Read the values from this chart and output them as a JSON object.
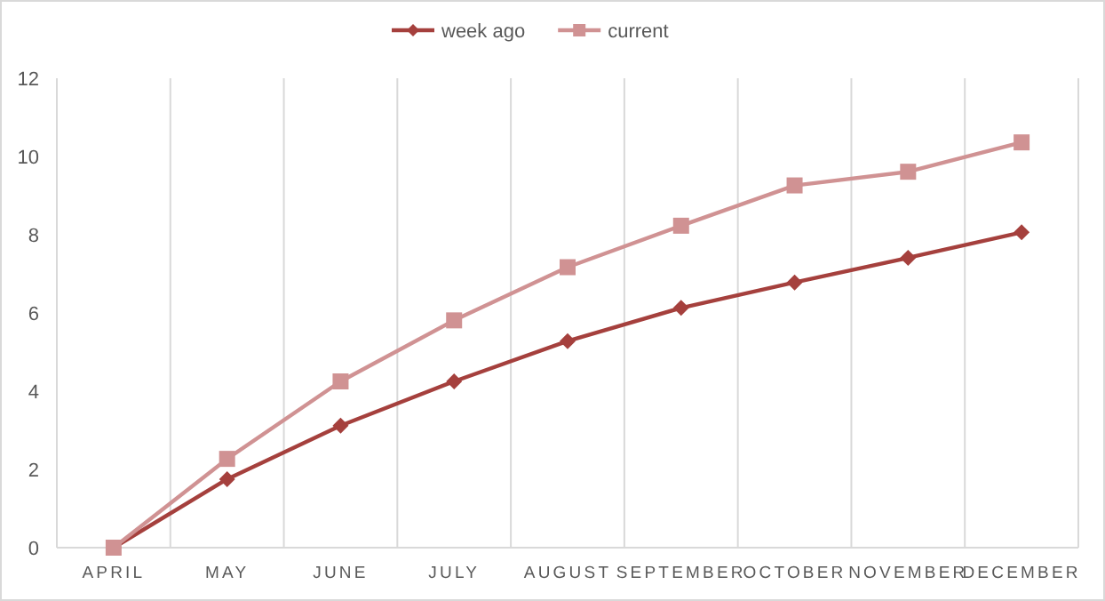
{
  "chart_data": {
    "type": "line",
    "categories": [
      "APRIL",
      "MAY",
      "JUNE",
      "JULY",
      "AUGUST",
      "SEPTEMBER",
      "OCTOBER",
      "NOVEMBER",
      "DECEMBER"
    ],
    "series": [
      {
        "name": "week ago",
        "color": "#a5403d",
        "marker": "diamond",
        "values": [
          0,
          1.75,
          3.12,
          4.25,
          5.28,
          6.13,
          6.78,
          7.41,
          8.06
        ]
      },
      {
        "name": "current",
        "color": "#d09293",
        "marker": "square",
        "values": [
          0,
          2.27,
          4.25,
          5.81,
          7.17,
          8.23,
          9.26,
          9.61,
          10.36
        ]
      }
    ],
    "ylim": [
      0,
      12
    ],
    "yticks": [
      0,
      2,
      4,
      6,
      8,
      10,
      12
    ],
    "grid": "x",
    "legend": "top"
  }
}
